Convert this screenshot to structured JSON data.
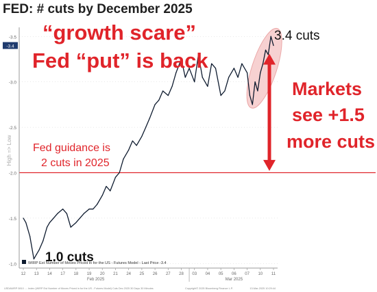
{
  "title": "FED: # cuts by December 2025",
  "colors": {
    "line": "#0d1a2e",
    "highlight": "#e0242a",
    "highlight_fill": "#f6c9c9",
    "axis_text": "#666666",
    "grid": "#d0d0d0"
  },
  "annotations": {
    "headline_1": "“growth scare”",
    "headline_2": "Fed “put” is back",
    "peak_label": "3.4 cuts",
    "markets_1": "Markets",
    "markets_2": "see +1.5",
    "markets_3": "more cuts",
    "guidance_1": "Fed guidance is",
    "guidance_2": "2 cuts in 2025",
    "low_label": "1.0 cuts"
  },
  "legend": "WIRP Est Number of Moves Priced in for the US - Futures Model - Last Price -3.4",
  "axis_side_label": "High => Low",
  "last_price_badge": "-3.4",
  "footer_left": "USDAWRP 0810 .... Index (WIRP Est Number of Moves Priced in for the US - Futures Model) Cuts Dec 2025 30 Days 30 Minutes",
  "footer_mid": "Copyright© 2025 Bloomberg Finance L.P.",
  "footer_right": "13-Mar-2025 10:29:44",
  "chart_data": {
    "type": "line",
    "ylabel": "High => Low",
    "ylim": [
      -3.6,
      -0.95
    ],
    "y_inverted": true,
    "yticks": [
      -3.5,
      -3.0,
      -2.5,
      -2.0,
      -1.5,
      -1.0
    ],
    "ytick_labels": [
      "-3.5",
      "-3.0",
      "-2.5",
      "-2.0",
      "-1.5",
      "-1.0"
    ],
    "x_tick_labels": [
      "12",
      "13",
      "14",
      "17",
      "18",
      "19",
      "20",
      "21",
      "24",
      "25",
      "26",
      "27",
      "28",
      "03",
      "04",
      "05",
      "06",
      "07",
      "10",
      "11"
    ],
    "x_month_labels": [
      "Feb 2025",
      "Mar 2025"
    ],
    "reference_line": {
      "y": -2.0,
      "label": "2 cuts in 2025"
    },
    "series": [
      {
        "name": "WIRP Est Number of Moves Priced in for the US - Futures Model",
        "x": [
          0,
          0.2,
          0.5,
          0.8,
          1.0,
          1.2,
          1.5,
          1.8,
          2.0,
          2.3,
          2.6,
          3.0,
          3.3,
          3.6,
          4.0,
          4.3,
          4.6,
          5.0,
          5.3,
          5.6,
          6.0,
          6.3,
          6.6,
          7.0,
          7.3,
          7.6,
          8.0,
          8.3,
          8.6,
          9.0,
          9.3,
          9.6,
          10.0,
          10.3,
          10.6,
          11.0,
          11.3,
          11.6,
          12.0,
          12.3,
          12.6,
          13.0,
          13.3,
          13.6,
          14.0,
          14.3,
          14.6,
          15.0,
          15.3,
          15.6,
          16.0,
          16.3,
          16.6,
          17.0,
          17.2,
          17.4,
          17.6,
          17.8,
          18.0,
          18.2,
          18.4,
          18.6,
          18.8,
          19.0
        ],
        "y": [
          -1.5,
          -1.45,
          -1.3,
          -1.05,
          -1.1,
          -1.15,
          -1.25,
          -1.4,
          -1.45,
          -1.5,
          -1.55,
          -1.6,
          -1.55,
          -1.4,
          -1.45,
          -1.5,
          -1.55,
          -1.6,
          -1.6,
          -1.65,
          -1.75,
          -1.85,
          -1.8,
          -1.95,
          -2.0,
          -2.15,
          -2.25,
          -2.35,
          -2.3,
          -2.4,
          -2.5,
          -2.6,
          -2.75,
          -2.8,
          -2.9,
          -2.85,
          -2.95,
          -3.1,
          -3.25,
          -3.05,
          -3.15,
          -3.0,
          -3.3,
          -3.05,
          -2.95,
          -3.2,
          -3.15,
          -2.85,
          -2.9,
          -3.05,
          -3.15,
          -3.05,
          -3.2,
          -3.1,
          -2.85,
          -2.75,
          -3.0,
          -2.9,
          -3.1,
          -3.2,
          -3.35,
          -3.3,
          -3.5,
          -3.4
        ]
      }
    ]
  }
}
